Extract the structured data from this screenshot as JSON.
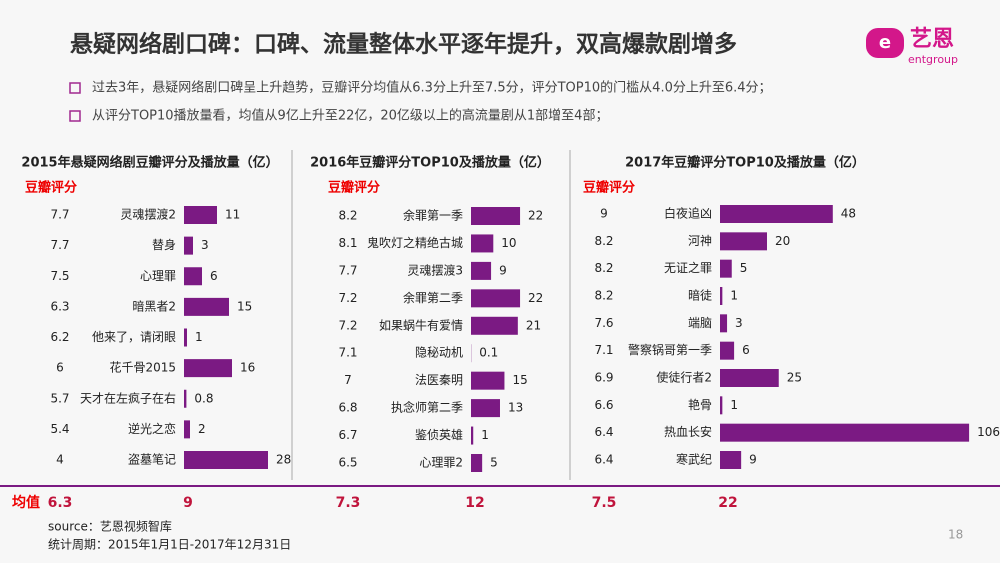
{
  "title": "悬疑网络剧口碑：口碑、流量整体水平逐年提升，双高爆款剧增多",
  "logo": "艺恩",
  "logo_sub": "entgroup",
  "bullets": [
    "过去3年，悬疑网络剧口碑呈上升趋势，豆瓣评分均值从6.3分上升至7.5分，评分TOP10的门槛从4.0分上升至6.4分；",
    "从评分TOP10播放量看，均值从9亿上升至22亿，20亿级以上的高流量剧从1部增至4部；"
  ],
  "average_label": "均值",
  "chart_data": [
    {
      "type": "bar",
      "title": "2015年悬疑网络剧豆瓣评分及播放量（亿）",
      "score_label": "豆瓣评分",
      "color": "#7b1a83",
      "categories": [
        "灵魂摆渡2",
        "替身",
        "心理罪",
        "暗黑者2",
        "他来了，请闭眼",
        "花千骨2015",
        "天才在左疯子在右",
        "逆光之恋",
        "盗墓笔记"
      ],
      "scores": [
        7.7,
        7.7,
        7.5,
        6.3,
        6.2,
        6.0,
        5.7,
        5.4,
        4.0
      ],
      "values": [
        11,
        3,
        6,
        15,
        1,
        16,
        0.8,
        2,
        28
      ],
      "avg_score": 6.3,
      "avg_value": 9
    },
    {
      "type": "bar",
      "title": "2016年豆瓣评分TOP10及播放量（亿）",
      "score_label": "豆瓣评分",
      "color": "#7b1a83",
      "categories": [
        "余罪第一季",
        "鬼吹灯之精绝古城",
        "灵魂摆渡3",
        "余罪第二季",
        "如果蜗牛有爱情",
        "隐秘动机",
        "法医秦明",
        "执念师第二季",
        "鉴侦英雄",
        "心理罪2"
      ],
      "scores": [
        8.2,
        8.1,
        7.7,
        7.2,
        7.2,
        7.1,
        7.0,
        6.8,
        6.7,
        6.5
      ],
      "values": [
        22,
        10,
        9,
        22,
        21,
        0.1,
        15,
        13,
        1,
        5
      ],
      "avg_score": 7.3,
      "avg_value": 12
    },
    {
      "type": "bar",
      "title": "2017年豆瓣评分TOP10及播放量（亿）",
      "score_label": "豆瓣评分",
      "color": "#7b1a83",
      "categories": [
        "白夜追凶",
        "河神",
        "无证之罪",
        "暗徒",
        "端脑",
        "警察锅哥第一季",
        "使徒行者2",
        "艳骨",
        "热血长安",
        "寒武纪"
      ],
      "scores": [
        9.0,
        8.2,
        8.2,
        8.2,
        7.6,
        7.1,
        6.9,
        6.6,
        6.4,
        6.4
      ],
      "values": [
        48,
        20,
        5,
        1,
        3,
        6,
        25,
        1,
        106,
        9
      ],
      "avg_score": 7.5,
      "avg_value": 22
    }
  ],
  "source": "source：艺恩视频智库",
  "period": "统计周期：2015年1月1日-2017年12月31日",
  "page": 18
}
